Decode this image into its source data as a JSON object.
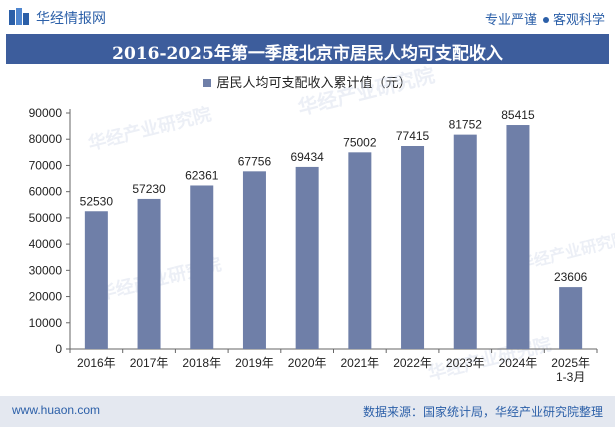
{
  "header": {
    "brand": "华经情报网",
    "slogan_left": "专业严谨",
    "slogan_right": "客观科学"
  },
  "chart_data": {
    "type": "bar",
    "title": "2016-2025年第一季度北京市居民人均可支配收入",
    "series": [
      {
        "name": "居民人均可支配收入累计值（元）",
        "values": [
          52530,
          57230,
          62361,
          67756,
          69434,
          75002,
          77415,
          81752,
          85415,
          23606
        ],
        "color": "#6f7fa8"
      }
    ],
    "categories": [
      "2016年",
      "2017年",
      "2018年",
      "2019年",
      "2020年",
      "2021年",
      "2022年",
      "2023年",
      "2024年",
      "2025年\n1-3月"
    ],
    "ylim": [
      0,
      90000
    ],
    "yticks": [
      0,
      10000,
      20000,
      30000,
      40000,
      50000,
      60000,
      70000,
      80000,
      90000
    ],
    "legend_position": "top-center",
    "grid": false
  },
  "watermark": "华经产业研究院",
  "footer": {
    "site": "www.huaon.com",
    "source": "数据来源：国家统计局，华经产业研究院整理"
  }
}
